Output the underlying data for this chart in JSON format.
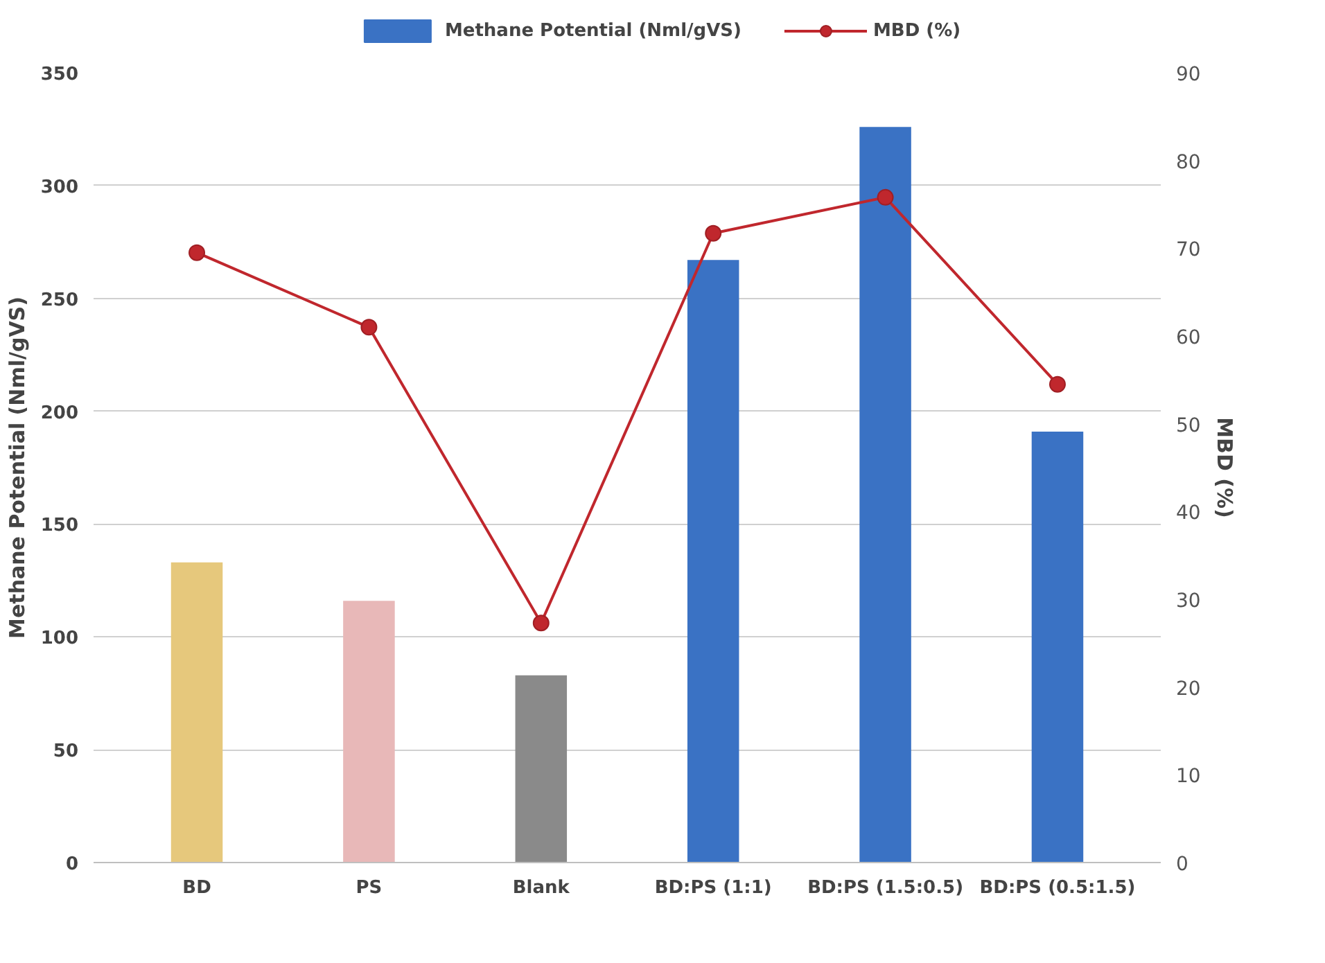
{
  "chart_data": {
    "type": "bar",
    "categories": [
      "BD",
      "PS",
      "Blank",
      "BD:PS (1:1)",
      "BD:PS (1.5:0.5)",
      "BD:PS (0.5:1.5)"
    ],
    "ylabel": "Methane Potential (Nml/gVS)",
    "y2label": "MBD (%)",
    "ylim": [
      0,
      350
    ],
    "yticks": [
      0,
      50,
      100,
      150,
      200,
      250,
      300,
      350
    ],
    "y2lim": [
      0,
      90
    ],
    "y2ticks": [
      0,
      10,
      20,
      30,
      40,
      50,
      60,
      70,
      80,
      90
    ],
    "grid": "y",
    "legend": "top",
    "marker": "circle",
    "line_style": "solid",
    "series": [
      {
        "name": "Methane Potential (Nml/gVS)",
        "color": "#3a72c4",
        "colors": [
          "#e6c87c",
          "#e8b8b8",
          "#8a8a8a",
          "#3a72c4",
          "#3a72c4",
          "#3a72c4"
        ],
        "values": [
          133,
          116,
          83,
          267,
          326,
          191
        ]
      },
      {
        "name": "MBD (%)",
        "type": "line",
        "axis": "y2",
        "color": "#c0272d",
        "values": [
          69.5,
          61,
          27.3,
          71.7,
          75.8,
          54.5
        ]
      }
    ]
  }
}
